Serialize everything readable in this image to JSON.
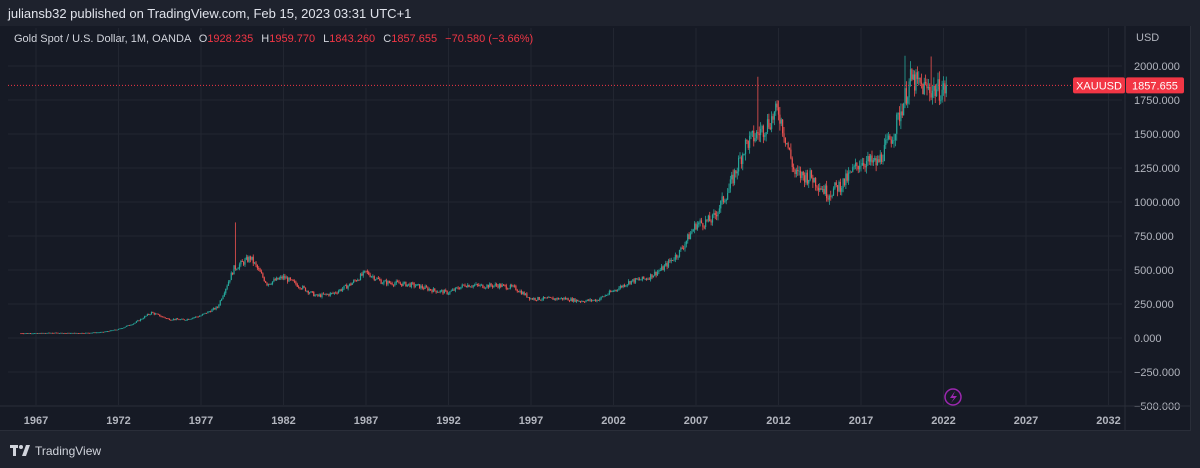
{
  "header": {
    "publish_line": "juliansb32 published on TradingView.com, Feb 15, 2023 03:31 UTC+1"
  },
  "legend": {
    "symbol": "Gold Spot / U.S. Dollar, 1M, OANDA",
    "o_label": "O",
    "o": "1928.235",
    "h_label": "H",
    "h": "1959.770",
    "l_label": "L",
    "l": "1843.260",
    "c_label": "C",
    "c": "1857.655",
    "change": "−70.580 (−3.66%)"
  },
  "price_tag": {
    "symbol": "XAUUSD",
    "price": "1857.655",
    "color": "#f23645"
  },
  "footer": {
    "brand": "TradingView"
  },
  "colors": {
    "up": "#26a69a",
    "down": "#ef5350",
    "background": "#161a25",
    "grid": "#222631"
  },
  "icons": {
    "event": "lightning-icon",
    "logo": "tradingview-logo-icon"
  },
  "chart_data": {
    "type": "candlestick",
    "title": "Gold Spot / U.S. Dollar, 1M, OANDA",
    "ylabel": "USD",
    "ylim": [
      -500,
      2250
    ],
    "xlim": [
      1965.3,
      2035.7
    ],
    "y_ticks": [
      "2000.000",
      "1750.000",
      "1500.000",
      "1250.000",
      "1000.000",
      "750.000",
      "500.000",
      "250.000",
      "0.000",
      "−250.000",
      "−500.000"
    ],
    "y_tick_values": [
      2000,
      1750,
      1500,
      1250,
      1000,
      750,
      500,
      250,
      0,
      -250,
      -500
    ],
    "x_ticks": [
      "1967",
      "1972",
      "1977",
      "1982",
      "1987",
      "1992",
      "1997",
      "2002",
      "2007",
      "2012",
      "2017",
      "2022",
      "2027",
      "2032"
    ],
    "last_price": 1857.655,
    "grid": true,
    "annual_closes": {
      "years": [
        1966,
        1967,
        1968,
        1969,
        1970,
        1971,
        1972,
        1973,
        1974,
        1975,
        1976,
        1977,
        1978,
        1979,
        1980,
        1981,
        1982,
        1983,
        1984,
        1985,
        1986,
        1987,
        1988,
        1989,
        1990,
        1991,
        1992,
        1993,
        1994,
        1995,
        1996,
        1997,
        1998,
        1999,
        2000,
        2001,
        2002,
        2003,
        2004,
        2005,
        2006,
        2007,
        2008,
        2009,
        2010,
        2011,
        2012,
        2013,
        2014,
        2015,
        2016,
        2017,
        2018,
        2019,
        2020,
        2021,
        2022,
        2023
      ],
      "values": [
        35,
        35,
        38,
        36,
        37,
        43,
        64,
        112,
        187,
        140,
        134,
        165,
        226,
        512,
        590,
        400,
        447,
        380,
        308,
        327,
        390,
        484,
        410,
        401,
        386,
        353,
        333,
        391,
        383,
        387,
        369,
        290,
        288,
        290,
        272,
        279,
        347,
        416,
        438,
        513,
        632,
        834,
        870,
        1096,
        1421,
        1531,
        1675,
        1202,
        1184,
        1061,
        1146,
        1303,
        1281,
        1517,
        1898,
        1829,
        1824,
        1857
      ]
    },
    "notable_highs": [
      {
        "year": 1980,
        "value": 850
      },
      {
        "year": 2011,
        "value": 1921
      },
      {
        "year": 2020,
        "value": 2075
      },
      {
        "year": 2022,
        "value": 2070
      }
    ]
  }
}
